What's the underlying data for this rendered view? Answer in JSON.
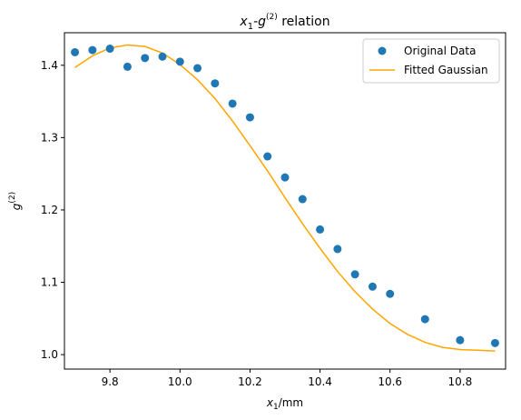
{
  "chart_data": {
    "type": "scatter",
    "title": {
      "base": "x",
      "sub": "1",
      "mid": "-g",
      "sup": "(2)",
      "tail": " relation"
    },
    "xlabel": {
      "base": "x",
      "sub": "1",
      "tail": "/mm"
    },
    "ylabel": {
      "base": "g",
      "sup": "(2)"
    },
    "xlim": [
      9.67,
      10.93
    ],
    "ylim": [
      0.98,
      1.445
    ],
    "xticks": [
      9.8,
      10.0,
      10.2,
      10.4,
      10.6,
      10.8
    ],
    "yticks": [
      1.0,
      1.1,
      1.2,
      1.3,
      1.4
    ],
    "xtick_labels": [
      "9.8",
      "10.0",
      "10.2",
      "10.4",
      "10.6",
      "10.8"
    ],
    "ytick_labels": [
      "1.0",
      "1.1",
      "1.2",
      "1.3",
      "1.4"
    ],
    "legend_position": "top-right",
    "series": [
      {
        "name": "Original Data",
        "kind": "scatter",
        "color": "#1f77b4",
        "x": [
          9.7,
          9.75,
          9.8,
          9.85,
          9.9,
          9.95,
          10.0,
          10.05,
          10.1,
          10.15,
          10.2,
          10.25,
          10.3,
          10.35,
          10.4,
          10.45,
          10.5,
          10.55,
          10.6,
          10.7,
          10.8,
          10.9
        ],
        "y": [
          1.418,
          1.421,
          1.423,
          1.398,
          1.41,
          1.412,
          1.405,
          1.396,
          1.375,
          1.347,
          1.328,
          1.274,
          1.245,
          1.215,
          1.173,
          1.146,
          1.111,
          1.094,
          1.084,
          1.049,
          1.02,
          1.016
        ]
      },
      {
        "name": "Fitted Gaussian",
        "kind": "line",
        "color": "#ffa500",
        "x": [
          9.7,
          9.75,
          9.8,
          9.85,
          9.9,
          9.95,
          10.0,
          10.05,
          10.1,
          10.15,
          10.2,
          10.25,
          10.3,
          10.35,
          10.4,
          10.45,
          10.5,
          10.55,
          10.6,
          10.65,
          10.7,
          10.75,
          10.8,
          10.85,
          10.9
        ],
        "y": [
          1.397,
          1.413,
          1.424,
          1.428,
          1.426,
          1.417,
          1.401,
          1.38,
          1.354,
          1.323,
          1.289,
          1.254,
          1.217,
          1.181,
          1.147,
          1.115,
          1.087,
          1.063,
          1.043,
          1.028,
          1.017,
          1.01,
          1.007,
          1.006,
          1.005
        ]
      }
    ]
  }
}
